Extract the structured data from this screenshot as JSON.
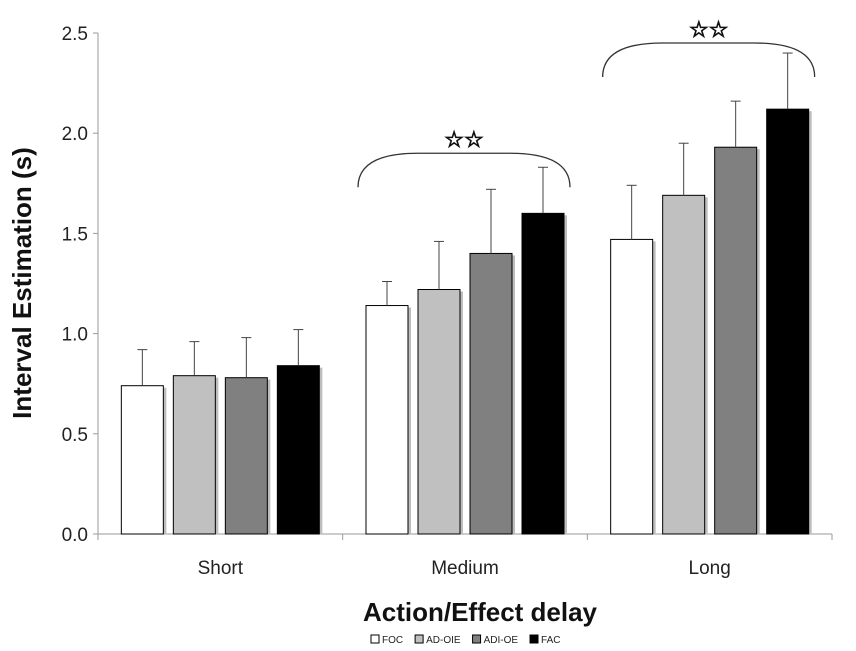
{
  "chart_data": {
    "type": "bar",
    "categories": [
      "Short",
      "Medium",
      "Long"
    ],
    "series": [
      {
        "name": "FOC",
        "color": "#ffffff",
        "values": [
          0.74,
          1.14,
          1.47
        ],
        "errors": [
          0.18,
          0.12,
          0.27
        ]
      },
      {
        "name": "AD-OIE",
        "color": "#c0c0c0",
        "values": [
          0.79,
          1.22,
          1.69
        ],
        "errors": [
          0.17,
          0.24,
          0.26
        ]
      },
      {
        "name": "ADI-OE",
        "color": "#808080",
        "values": [
          0.78,
          1.4,
          1.93
        ],
        "errors": [
          0.2,
          0.32,
          0.23
        ]
      },
      {
        "name": "FAC",
        "color": "#000000",
        "values": [
          0.84,
          1.6,
          2.12
        ],
        "errors": [
          0.18,
          0.23,
          0.28
        ]
      }
    ],
    "xlabel": "Action/Effect delay",
    "ylabel": "Interval Estimation (s)",
    "ylim": [
      0,
      2.5
    ],
    "yticks": [
      "0.0",
      "0.5",
      "1.0",
      "1.5",
      "2.0",
      "2.5"
    ],
    "significance": [
      {
        "category": "Medium",
        "marker": "☆☆",
        "level": 1.9
      },
      {
        "category": "Long",
        "marker": "☆☆",
        "level": 2.45
      }
    ],
    "legend_position": "bottom",
    "grid": false
  }
}
